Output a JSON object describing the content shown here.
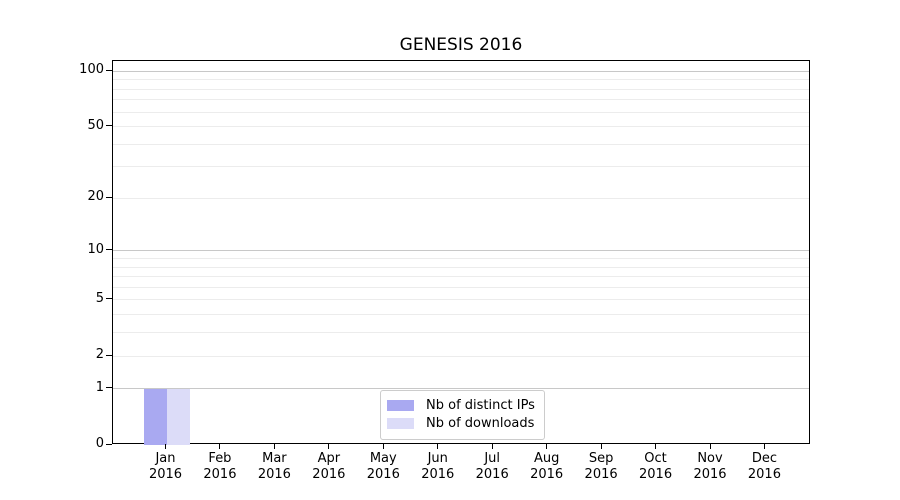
{
  "chart_data": {
    "type": "bar",
    "title": "GENESIS 2016",
    "categories": [
      "Jan",
      "Feb",
      "Mar",
      "Apr",
      "May",
      "Jun",
      "Jul",
      "Aug",
      "Sep",
      "Oct",
      "Nov",
      "Dec"
    ],
    "category_year": "2016",
    "series": [
      {
        "name": "Nb of distinct IPs",
        "color": "#a9a9f1",
        "values": [
          1,
          0,
          0,
          0,
          0,
          0,
          0,
          0,
          0,
          0,
          0,
          0
        ]
      },
      {
        "name": "Nb of downloads",
        "color": "#dcdcf8",
        "values": [
          1,
          0,
          0,
          0,
          0,
          0,
          0,
          0,
          0,
          0,
          0,
          0
        ]
      }
    ],
    "xlabel": "",
    "ylabel": "",
    "yscale": "log1p",
    "ylim": [
      0,
      113
    ],
    "y_tick_labels": [
      0,
      1,
      2,
      5,
      10,
      20,
      50,
      100
    ],
    "y_grid_major": [
      1,
      10,
      100
    ],
    "y_grid_minor": [
      2,
      3,
      4,
      5,
      6,
      7,
      8,
      9,
      20,
      30,
      40,
      50,
      60,
      70,
      80,
      90
    ],
    "grid": true,
    "legend_position": "lower center"
  },
  "colors": {
    "background": "#ffffff",
    "axis": "#000000",
    "text": "#000000",
    "grid_major": "#c8c8c8",
    "grid_minor": "#ececec",
    "legend_border": "#cccccc",
    "bar_distinct_ips": "#a9a9f1",
    "bar_downloads": "#dcdcf8"
  }
}
